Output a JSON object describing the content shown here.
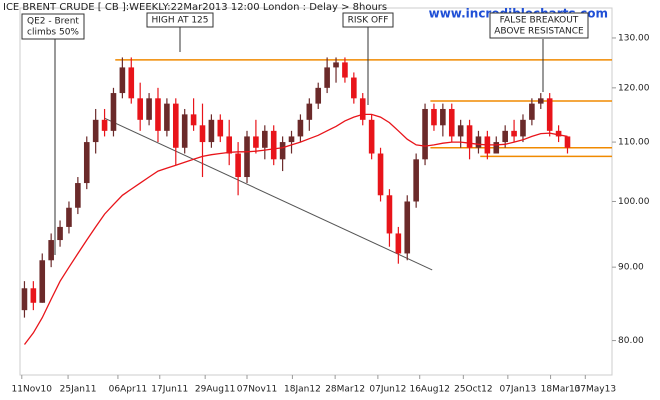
{
  "chart_data": {
    "type": "candlestick",
    "title": "ICE BRENT CRUDE [ CB ]:WEEKLY:22Mar2013 12:00 London : Delay > 8hours",
    "watermark": "www.incrediblecharts.com",
    "log_scale": true,
    "up_color": "#6b2a2a",
    "down_color": "#e8141a",
    "open": [
      84,
      87,
      85,
      91,
      94,
      96,
      99,
      103,
      110,
      114,
      112,
      119,
      124,
      118,
      114,
      118,
      112,
      117,
      109,
      115,
      113,
      110,
      114,
      111,
      108,
      104,
      111,
      109,
      112,
      107,
      110,
      111,
      114,
      117,
      120,
      124,
      125,
      122,
      118,
      114,
      108,
      101,
      95,
      92,
      100,
      107,
      116,
      113,
      116,
      111,
      113,
      109,
      111,
      108,
      110,
      112,
      111,
      114,
      117,
      118,
      112,
      111
    ],
    "high": [
      88,
      88,
      92,
      95,
      97,
      100,
      104,
      111,
      116,
      116,
      120,
      126,
      126,
      121,
      119,
      120,
      118,
      118,
      116,
      118,
      117,
      115,
      115,
      114,
      110,
      112,
      114,
      113,
      113,
      111,
      112,
      115,
      118,
      121,
      126,
      126,
      126,
      123,
      119,
      115,
      109,
      102,
      96,
      101,
      108,
      117,
      117,
      117,
      117,
      114,
      114,
      112,
      112,
      111,
      113,
      114,
      115,
      118,
      119,
      119,
      113,
      111
    ],
    "low": [
      83,
      84,
      85,
      90,
      93,
      95,
      98,
      102,
      108,
      111,
      111,
      118,
      117,
      112,
      113,
      110,
      111,
      106,
      108,
      112,
      104,
      109,
      110,
      106,
      101,
      103,
      108,
      107,
      106,
      105,
      108,
      110,
      112,
      116,
      119,
      121,
      121,
      117,
      113,
      107,
      100,
      93,
      90.5,
      91,
      99,
      106,
      112,
      111,
      110,
      109,
      107,
      108,
      107,
      108,
      109,
      110,
      110,
      113,
      116,
      111,
      110,
      108
    ],
    "close": [
      87,
      85,
      91,
      94,
      96,
      99,
      103,
      110,
      114,
      112,
      119,
      124,
      118,
      114,
      118,
      112,
      117,
      109,
      115,
      113,
      110,
      114,
      111,
      108,
      104,
      111,
      109,
      112,
      107,
      110,
      111,
      114,
      117,
      120,
      124,
      125,
      122,
      118,
      114,
      108,
      101,
      95,
      92,
      100,
      107,
      116,
      113,
      116,
      111,
      113,
      109,
      111,
      108,
      110,
      112,
      111,
      114,
      117,
      118,
      112,
      111,
      109
    ],
    "ma": {
      "color": "#e8141a",
      "values": [
        79.5,
        81,
        83,
        85.5,
        88,
        90,
        92,
        94,
        96,
        98,
        99.5,
        101,
        102,
        103,
        104,
        105,
        105.5,
        106,
        106.5,
        107,
        107.5,
        107.8,
        108,
        108.2,
        108.3,
        108.3,
        108.4,
        108.6,
        108.8,
        109,
        109.5,
        110,
        110.6,
        111.2,
        112,
        112.8,
        113.8,
        114.5,
        115,
        115,
        114.5,
        113.5,
        112,
        110.5,
        109.5,
        109.3,
        109.5,
        109.8,
        110,
        110,
        109.8,
        109.6,
        109.5,
        109.5,
        109.6,
        110,
        110.4,
        111,
        111.5,
        111.6,
        111.3,
        111
      ]
    },
    "levels": {
      "color": "#f08a00",
      "values": [
        125.5,
        117.5,
        109,
        107.5
      ],
      "from": [
        10.7,
        46.1,
        46.1,
        51.7
      ]
    },
    "trendline": {
      "color": "#555",
      "from": [
        9.5,
        114.3
      ],
      "to": [
        46.3,
        89.6
      ]
    },
    "annotations": [
      {
        "lines": [
          "QE2 - Brent",
          "climbs 50%"
        ]
      },
      {
        "lines": [
          "HIGH AT 125"
        ]
      },
      {
        "lines": [
          "RISK OFF"
        ]
      },
      {
        "lines": [
          "FALSE BREAKOUT",
          "ABOVE RESISTANCE"
        ]
      }
    ],
    "xlim": [
      0,
      66.5
    ],
    "xticks": [
      {
        "value": 0.2,
        "label": "11Nov10"
      },
      {
        "value": 5.4,
        "label": "25Jan11"
      },
      {
        "value": 11.0,
        "label": "06Apr11"
      },
      {
        "value": 15.7,
        "label": "17Jun11"
      },
      {
        "value": 20.8,
        "label": "29Aug11"
      },
      {
        "value": 25.5,
        "label": "07Nov11"
      },
      {
        "value": 30.6,
        "label": "18Jan12"
      },
      {
        "value": 35.4,
        "label": "28Mar12"
      },
      {
        "value": 40.2,
        "label": "07Jun12"
      },
      {
        "value": 44.9,
        "label": "16Aug12"
      },
      {
        "value": 49.8,
        "label": "25Oct12"
      },
      {
        "value": 54.8,
        "label": "07Jan13"
      },
      {
        "value": 59.6,
        "label": "18Mar13"
      },
      {
        "value": 63.5,
        "label": "07May13"
      }
    ],
    "ylim": [
      75.7,
      136.4
    ],
    "yticks": [
      {
        "value": 80,
        "label": "80.00"
      },
      {
        "value": 90,
        "label": "90.00"
      },
      {
        "value": 100,
        "label": "100.00"
      },
      {
        "value": 110,
        "label": "110.00"
      },
      {
        "value": 120,
        "label": "120.00"
      },
      {
        "value": 130,
        "label": "130.00"
      }
    ]
  }
}
